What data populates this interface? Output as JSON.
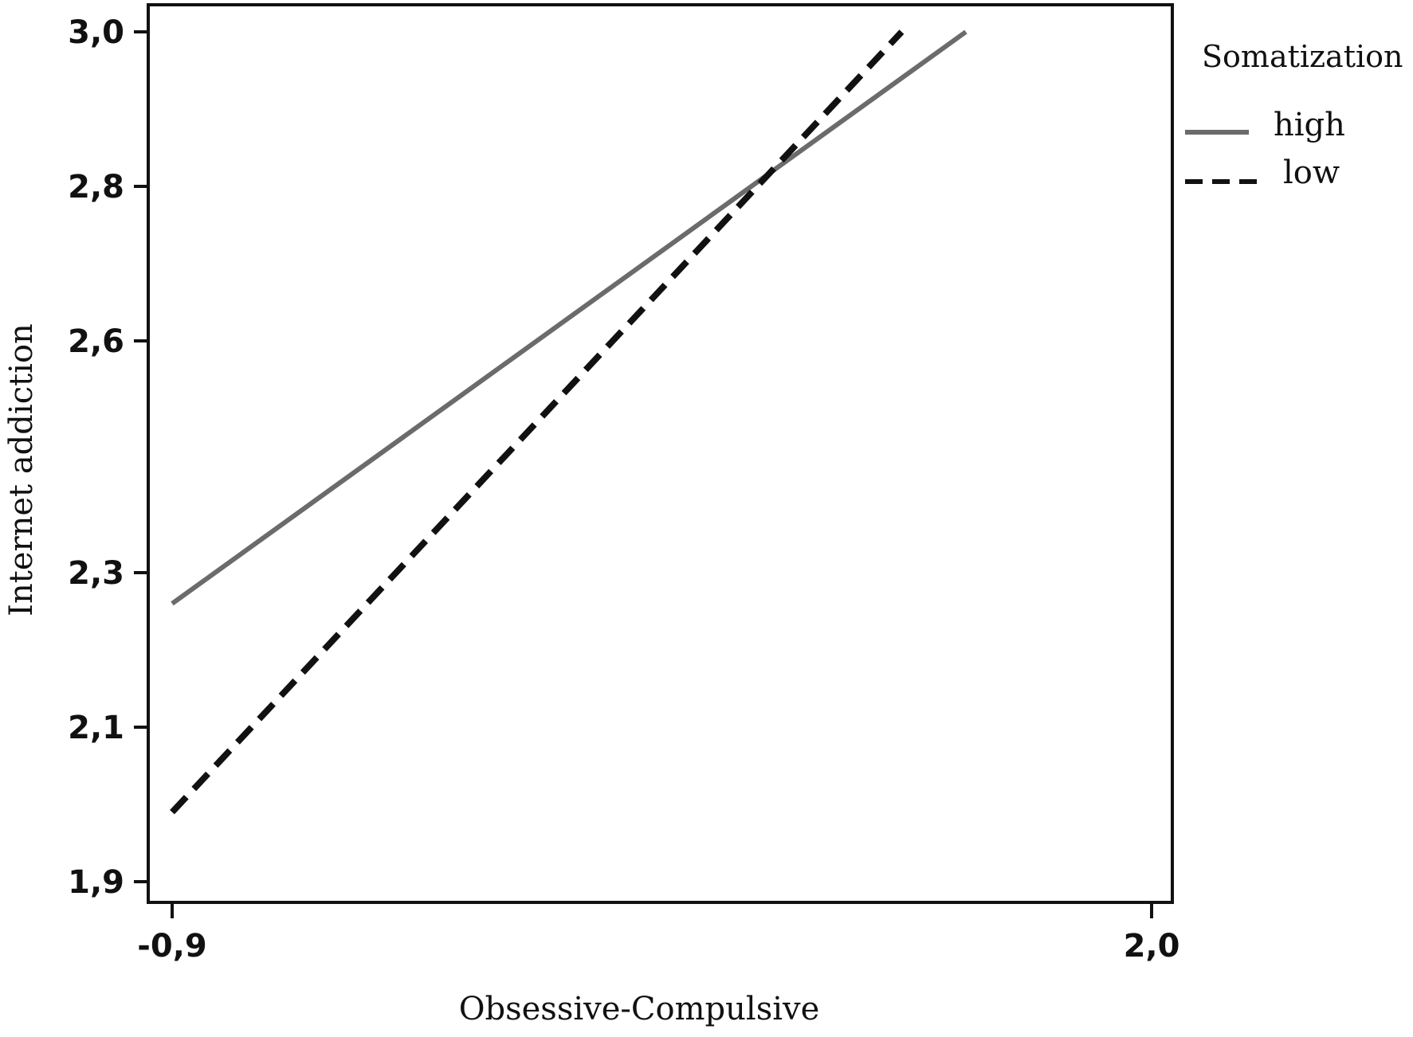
{
  "chart_data": {
    "type": "line",
    "xlabel": "Obsessive-Compulsive",
    "ylabel": "Internet addiction",
    "xlim": [
      -0.9,
      2.0
    ],
    "ylim": [
      1.9,
      3.0
    ],
    "x_ticks": [
      -0.9,
      2.0
    ],
    "x_tick_labels": [
      "-0,9",
      "2,0"
    ],
    "y_ticks": [
      1.9,
      2.1,
      2.3,
      2.6,
      2.8,
      3.0
    ],
    "y_tick_labels": [
      "1,9",
      "2,1",
      "2,3",
      "2,6",
      "2,8",
      "3,0"
    ],
    "grid": false,
    "legend": {
      "title": "Somatization",
      "placement": "right"
    },
    "series": [
      {
        "name": "high",
        "style": "solid",
        "color": "#6b6b6b",
        "x": [
          -0.9,
          1.45
        ],
        "y": [
          2.26,
          3.0
        ]
      },
      {
        "name": "low",
        "style": "dashed",
        "color": "#111111",
        "x": [
          -0.9,
          1.26
        ],
        "y": [
          1.99,
          3.0
        ]
      }
    ]
  }
}
